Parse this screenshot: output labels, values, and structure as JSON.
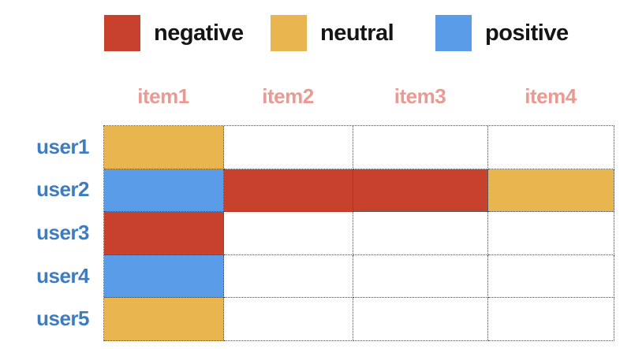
{
  "chart_data": {
    "type": "heatmap",
    "title": "",
    "x_categories": [
      "item1",
      "item2",
      "item3",
      "item4"
    ],
    "y_categories": [
      "user1",
      "user2",
      "user3",
      "user4",
      "user5"
    ],
    "legend": [
      {
        "label": "negative",
        "color": "#C8412C"
      },
      {
        "label": "neutral",
        "color": "#E8B54E"
      },
      {
        "label": "positive",
        "color": "#5B9CE8"
      }
    ],
    "legend_position": "top",
    "cell_values": [
      [
        "neutral",
        null,
        null,
        null
      ],
      [
        "positive",
        "negative",
        "negative",
        "neutral"
      ],
      [
        "negative",
        null,
        null,
        null
      ],
      [
        "positive",
        null,
        null,
        null
      ],
      [
        "neutral",
        null,
        null,
        null
      ]
    ],
    "empty_cell_value": null,
    "empty_cell_color": "#FFFFFF",
    "grid": "dotted"
  },
  "colors": {
    "negative": "#C8412C",
    "neutral": "#E8B54E",
    "positive": "#5B9CE8",
    "column_label": "#E99A93",
    "row_label": "#3E7CC2",
    "legend_text": "#151515",
    "cell_border": "#4a4a4a"
  }
}
